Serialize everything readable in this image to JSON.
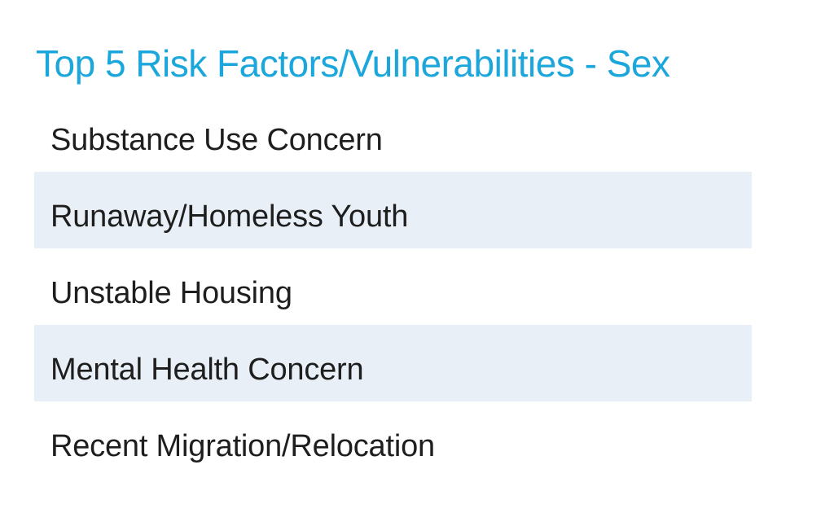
{
  "slide": {
    "title": "Top 5 Risk Factors/Vulnerabilities - Sex",
    "items": [
      {
        "rank": 1,
        "label": "Substance Use Concern",
        "highlighted": false
      },
      {
        "rank": 2,
        "label": "Runaway/Homeless Youth",
        "highlighted": true
      },
      {
        "rank": 3,
        "label": "Unstable Housing",
        "highlighted": false
      },
      {
        "rank": 4,
        "label": "Mental Health Concern",
        "highlighted": true
      },
      {
        "rank": 5,
        "label": "Recent Migration/Relocation",
        "highlighted": false
      }
    ],
    "colors": {
      "accent": "#1ba7dc",
      "band": "#e8eff6",
      "text": "#1e1e1e",
      "background": "#ffffff"
    }
  }
}
